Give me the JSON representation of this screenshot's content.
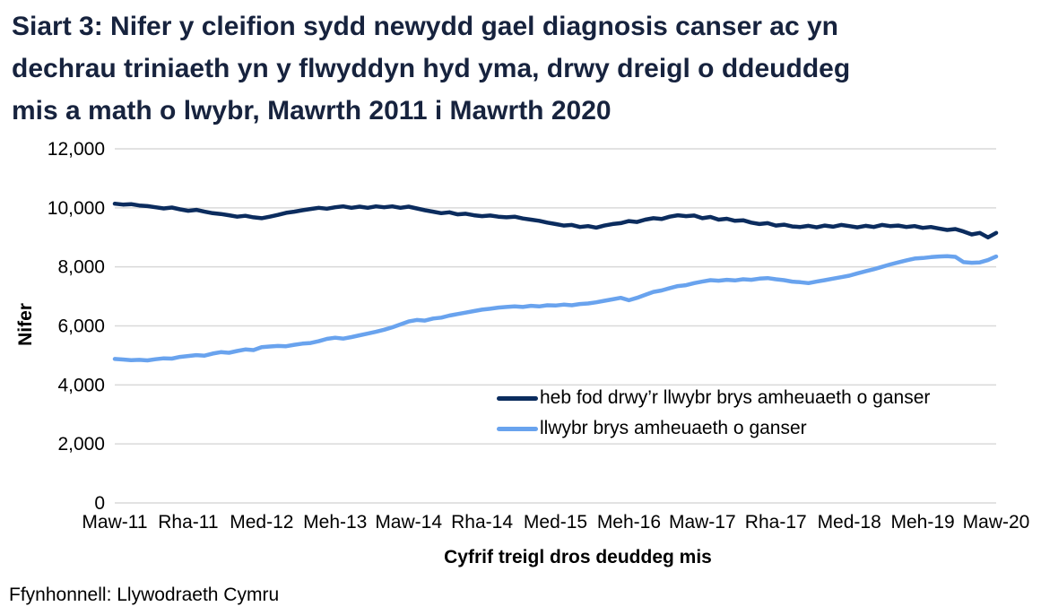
{
  "header": {
    "lines": [
      "Siart 3: Nifer y cleifion sydd newydd gael diagnosis canser ac yn",
      "dechrau triniaeth yn y flwyddyn hyd yma, drwy dreigl o ddeuddeg",
      "mis a math o lwybr, Mawrth 2011 i Mawrth 2020"
    ],
    "title_full": "Siart 3: Nifer y cleifion sydd newydd gael diagnosis canser ac yn dechrau triniaeth yn y flwyddyn hyd yma, drwy dreigl o ddeuddeg mis a math o lwybr, Mawrth 2011 i Mawrth 2020"
  },
  "footer": {
    "source": "Ffynhonnell: Llywodraeth Cymru"
  },
  "colors": {
    "title_text": "#17233e",
    "body_text": "#000000",
    "gridline": "#d9d9d9",
    "axis_line": "#d9d9d9",
    "series_navy": "#0b2c5e",
    "series_light_blue": "#69a3ee"
  },
  "chart_data": {
    "type": "line",
    "title": "Siart 3: Nifer y cleifion sydd newydd gael diagnosis canser ac yn dechrau triniaeth yn y flwyddyn hyd yma, drwy dreigl o ddeuddeg mis a math o lwybr, Mawrth 2011 i Mawrth 2020",
    "xlabel": "Cyfrif treigl dros deuddeg mis",
    "ylabel": "Nifer",
    "ylim": [
      0,
      12000
    ],
    "grid": true,
    "legend_position": "inside-center-right",
    "x_description": "Monthly rolling 12-month counts, Mawrth 2011 to Mawrth 2020 (109 points)",
    "y_ticks": [
      {
        "value": 0,
        "label": "0"
      },
      {
        "value": 2000,
        "label": "2,000"
      },
      {
        "value": 4000,
        "label": "4,000"
      },
      {
        "value": 6000,
        "label": "6,000"
      },
      {
        "value": 8000,
        "label": "8,000"
      },
      {
        "value": 10000,
        "label": "10,000"
      },
      {
        "value": 12000,
        "label": "12,000"
      }
    ],
    "x_ticks": [
      {
        "index": 0,
        "label": "Maw-11"
      },
      {
        "index": 9,
        "label": "Rha-11"
      },
      {
        "index": 18,
        "label": "Med-12"
      },
      {
        "index": 27,
        "label": "Meh-13"
      },
      {
        "index": 36,
        "label": "Maw-14"
      },
      {
        "index": 45,
        "label": "Rha-14"
      },
      {
        "index": 54,
        "label": "Med-15"
      },
      {
        "index": 63,
        "label": "Meh-16"
      },
      {
        "index": 72,
        "label": "Maw-17"
      },
      {
        "index": 81,
        "label": "Rha-17"
      },
      {
        "index": 90,
        "label": "Med-18"
      },
      {
        "index": 99,
        "label": "Meh-19"
      },
      {
        "index": 108,
        "label": "Maw-20"
      }
    ],
    "series": [
      {
        "name": "heb fod drwy’r llwybr brys amheuaeth o ganser",
        "color": "#0b2c5e",
        "values": [
          10140,
          10110,
          10125,
          10080,
          10060,
          10020,
          9980,
          10010,
          9950,
          9900,
          9930,
          9870,
          9820,
          9790,
          9750,
          9700,
          9730,
          9680,
          9650,
          9700,
          9760,
          9830,
          9870,
          9920,
          9960,
          10000,
          9970,
          10020,
          10050,
          10000,
          10040,
          10000,
          10050,
          10020,
          10050,
          10000,
          10040,
          9980,
          9920,
          9870,
          9820,
          9850,
          9780,
          9800,
          9750,
          9720,
          9740,
          9700,
          9680,
          9700,
          9640,
          9600,
          9560,
          9500,
          9450,
          9400,
          9420,
          9350,
          9380,
          9330,
          9400,
          9450,
          9480,
          9550,
          9520,
          9600,
          9650,
          9620,
          9700,
          9750,
          9720,
          9740,
          9650,
          9690,
          9600,
          9630,
          9560,
          9580,
          9500,
          9450,
          9480,
          9400,
          9430,
          9370,
          9350,
          9390,
          9340,
          9400,
          9360,
          9420,
          9380,
          9340,
          9390,
          9350,
          9420,
          9380,
          9400,
          9350,
          9380,
          9320,
          9350,
          9300,
          9250,
          9280,
          9200,
          9100,
          9150,
          9000,
          9150
        ]
      },
      {
        "name": "llwybr brys amheuaeth o ganser",
        "color": "#69a3ee",
        "values": [
          4880,
          4860,
          4840,
          4850,
          4830,
          4870,
          4900,
          4890,
          4950,
          4980,
          5010,
          4990,
          5060,
          5110,
          5090,
          5150,
          5200,
          5180,
          5280,
          5300,
          5320,
          5310,
          5360,
          5400,
          5420,
          5480,
          5560,
          5600,
          5570,
          5620,
          5680,
          5740,
          5800,
          5870,
          5950,
          6050,
          6150,
          6200,
          6180,
          6250,
          6280,
          6350,
          6400,
          6450,
          6500,
          6550,
          6580,
          6620,
          6640,
          6660,
          6640,
          6680,
          6660,
          6700,
          6690,
          6720,
          6700,
          6740,
          6760,
          6800,
          6850,
          6900,
          6950,
          6870,
          6950,
          7050,
          7150,
          7200,
          7280,
          7350,
          7380,
          7450,
          7500,
          7550,
          7530,
          7560,
          7540,
          7580,
          7560,
          7600,
          7620,
          7580,
          7550,
          7500,
          7480,
          7450,
          7500,
          7550,
          7600,
          7650,
          7700,
          7780,
          7850,
          7920,
          8000,
          8080,
          8150,
          8220,
          8280,
          8300,
          8330,
          8350,
          8360,
          8340,
          8160,
          8140,
          8150,
          8230,
          8350
        ]
      }
    ]
  }
}
